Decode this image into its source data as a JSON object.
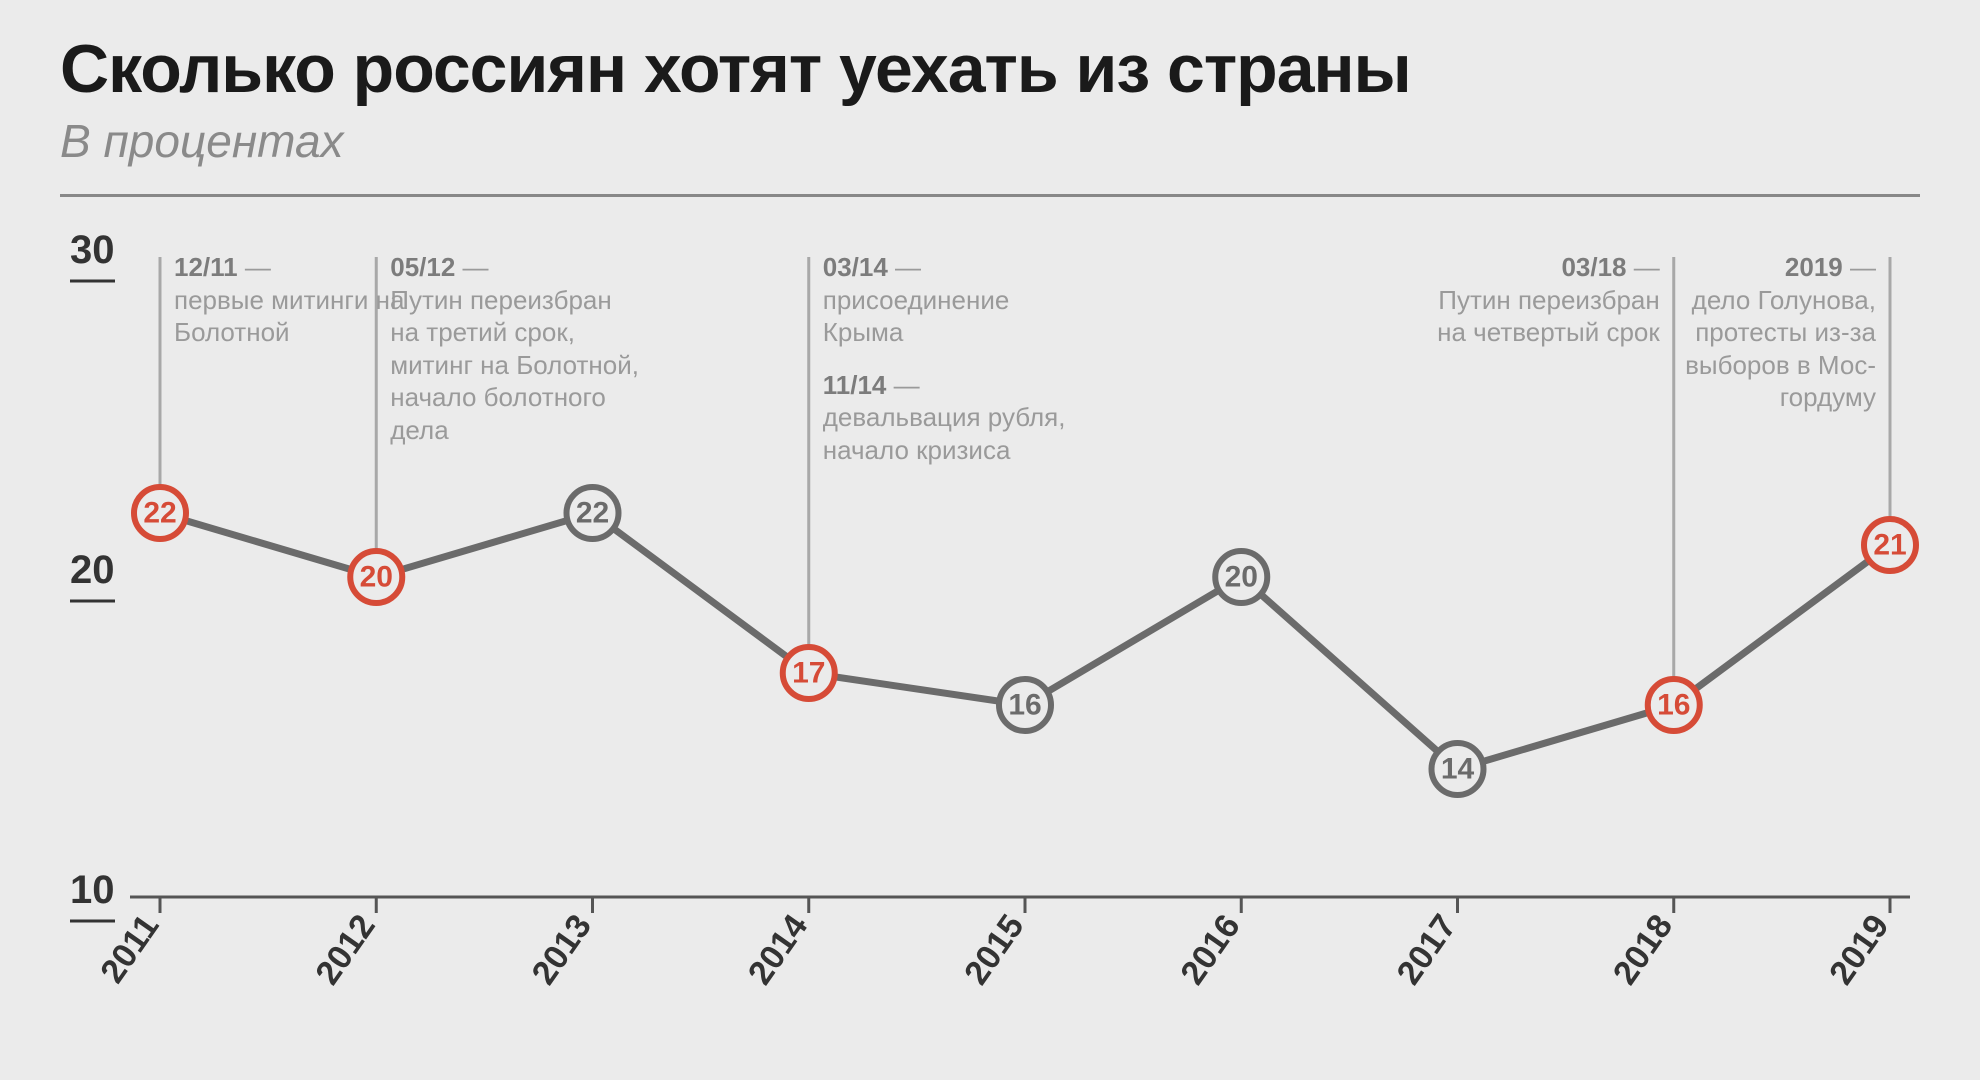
{
  "header": {
    "title": "Сколько россиян хотят уехать из страны",
    "subtitle": "В процентах"
  },
  "chart": {
    "type": "line",
    "background_color": "#ebebeb",
    "line_color": "#6b6b6b",
    "line_width": 7,
    "marker_radius": 26,
    "marker_fill": "#ebebeb",
    "marker_stroke_width": 6,
    "highlight_color": "#d64b37",
    "normal_color": "#6b6b6b",
    "ylim": [
      10,
      30
    ],
    "yticks": [
      10,
      20,
      30
    ],
    "xlabels": [
      "2011",
      "2012",
      "2013",
      "2014",
      "2015",
      "2016",
      "2017",
      "2018",
      "2019"
    ],
    "values": [
      22,
      20,
      22,
      17,
      16,
      20,
      14,
      16,
      21
    ],
    "highlighted_indices": [
      0,
      1,
      3,
      7,
      8
    ],
    "annotations": [
      {
        "point_index": 0,
        "align": "left",
        "date": "12/11",
        "text": "первые митинги на Болотной"
      },
      {
        "point_index": 1,
        "align": "left",
        "date": "05/12",
        "text": "Путин переизбран на третий срок, митинг на Болотной, начало болотного дела"
      },
      {
        "point_index": 3,
        "align": "left",
        "date": "03/14",
        "text": "присоединение Крыма",
        "second_date": "11/14",
        "second_text": "девальвация рубля, начало кризиса"
      },
      {
        "point_index": 7,
        "align": "right",
        "date": "03/18",
        "text": "Путин переизбран на четвертый срок"
      },
      {
        "point_index": 8,
        "align": "right",
        "date": "2019",
        "text": "дело Голунова, протесты из-за выборов в Мос- гордуму"
      }
    ],
    "axis_color": "#555",
    "tick_label_color": "#333",
    "annotation_color": "#9a9a9a",
    "callout_color": "#a8a8a8",
    "title_fontsize": 68,
    "subtitle_fontsize": 46,
    "ytick_fontsize": 40,
    "xtick_fontsize": 34,
    "value_fontsize": 30,
    "annotation_fontsize": 26
  }
}
